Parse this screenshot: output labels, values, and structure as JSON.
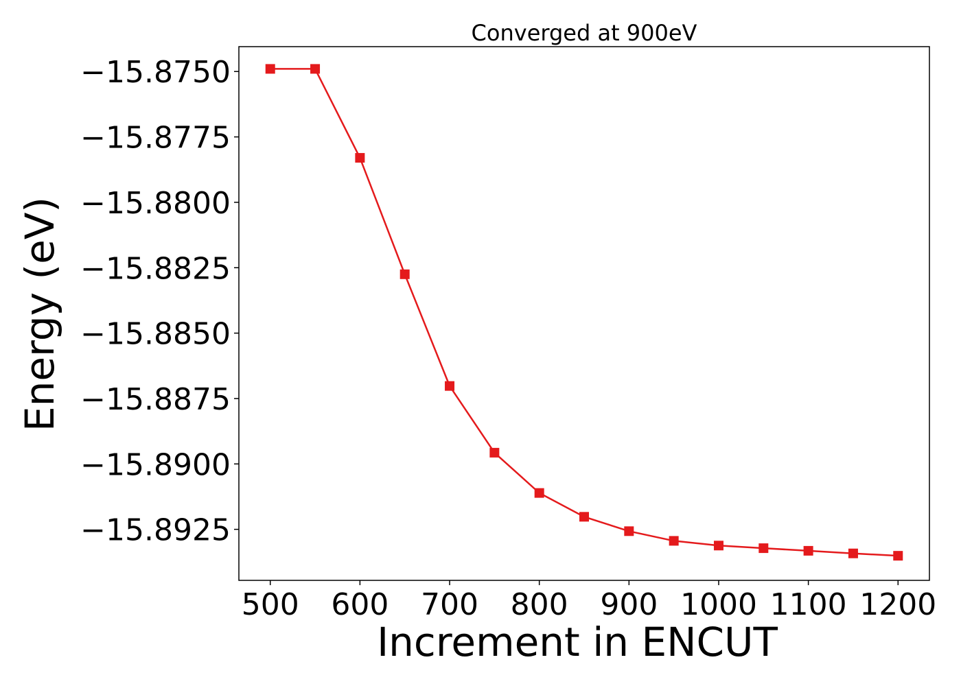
{
  "chart_data": {
    "type": "line",
    "title": "Converged at 900eV",
    "xlabel": "Increment in ENCUT",
    "ylabel": "Energy (eV)",
    "xlim": [
      465,
      1235
    ],
    "ylim": [
      -15.89445,
      -15.87405
    ],
    "xticks": [
      500,
      600,
      700,
      800,
      900,
      1000,
      1100,
      1200
    ],
    "xtick_labels": [
      "500",
      "600",
      "700",
      "800",
      "900",
      "1000",
      "1100",
      "1200"
    ],
    "yticks": [
      -15.875,
      -15.8775,
      -15.88,
      -15.8825,
      -15.885,
      -15.8875,
      -15.89,
      -15.8925
    ],
    "ytick_labels": [
      "−15.8750",
      "−15.8775",
      "−15.8800",
      "−15.8825",
      "−15.8850",
      "−15.8875",
      "−15.8900",
      "−15.8925"
    ],
    "grid": false,
    "series": [
      {
        "marker": "square",
        "color": "#e41a1c",
        "x": [
          500,
          550,
          600,
          650,
          700,
          750,
          800,
          850,
          900,
          950,
          1000,
          1050,
          1100,
          1150,
          1200
        ],
        "y": [
          -15.8749,
          -15.8749,
          -15.8783,
          -15.88275,
          -15.88702,
          -15.88957,
          -15.89111,
          -15.89202,
          -15.89257,
          -15.89294,
          -15.89312,
          -15.89322,
          -15.89332,
          -15.89342,
          -15.89351
        ]
      }
    ]
  }
}
